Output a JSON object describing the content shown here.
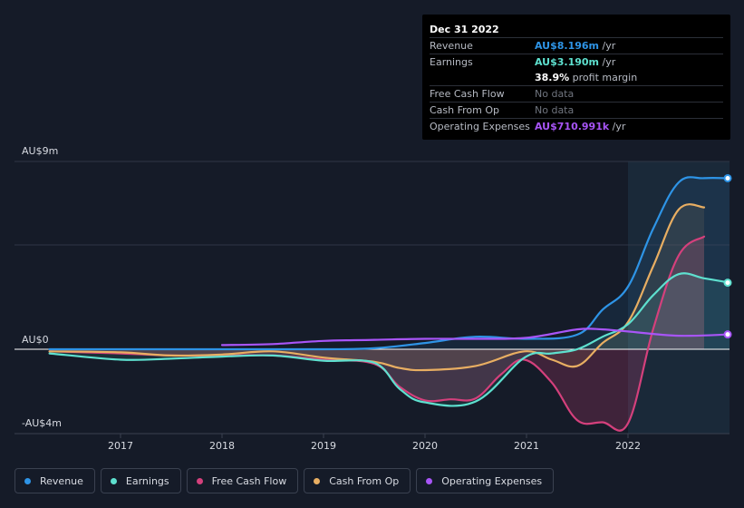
{
  "tooltip": {
    "date": "Dec 31 2022",
    "rows": {
      "revenue": {
        "label": "Revenue",
        "value": "AU$8.196m",
        "unit": " /yr",
        "color": "#2e94e6"
      },
      "earnings": {
        "label": "Earnings",
        "value": "AU$3.190m",
        "unit": " /yr",
        "color": "#5ee0cf"
      },
      "margin": {
        "value": "38.9%",
        "unit": " profit margin",
        "color": "#ffffff"
      },
      "fcf": {
        "label": "Free Cash Flow",
        "value": "No data"
      },
      "cfo": {
        "label": "Cash From Op",
        "value": "No data"
      },
      "opex": {
        "label": "Operating Expenses",
        "value": "AU$710.991k",
        "unit": " /yr",
        "color": "#a855f7"
      }
    }
  },
  "legend": {
    "revenue": "Revenue",
    "earnings": "Earnings",
    "fcf": "Free Cash Flow",
    "cfo": "Cash From Op",
    "opex": "Operating Expenses"
  },
  "chart_data": {
    "type": "line",
    "ylim": [
      -4,
      9
    ],
    "y_tick_labels": [
      {
        "value": 9,
        "label": "AU$9m"
      },
      {
        "value": 0,
        "label": "AU$0"
      },
      {
        "value": -4,
        "label": "-AU$4m"
      }
    ],
    "xlim": [
      2016.3,
      2023.0
    ],
    "x_ticks": [
      {
        "value": 2017,
        "label": "2017"
      },
      {
        "value": 2018,
        "label": "2018"
      },
      {
        "value": 2019,
        "label": "2019"
      },
      {
        "value": 2020,
        "label": "2020"
      },
      {
        "value": 2021,
        "label": "2021"
      },
      {
        "value": 2022,
        "label": "2022"
      }
    ],
    "highlight_from": 2022.0,
    "series": [
      {
        "name": "Free Cash Flow",
        "key": "fcf",
        "color": "#d4407c",
        "fill": true,
        "points": [
          [
            2016.3,
            -0.1
          ],
          [
            2017.0,
            -0.2
          ],
          [
            2017.5,
            -0.3
          ],
          [
            2018.0,
            -0.3
          ],
          [
            2018.5,
            -0.3
          ],
          [
            2019.0,
            -0.5
          ],
          [
            2019.5,
            -0.7
          ],
          [
            2019.75,
            -1.8
          ],
          [
            2020.0,
            -2.45
          ],
          [
            2020.25,
            -2.4
          ],
          [
            2020.5,
            -2.35
          ],
          [
            2020.75,
            -1.2
          ],
          [
            2020.98,
            -0.5
          ],
          [
            2021.25,
            -1.6
          ],
          [
            2021.5,
            -3.4
          ],
          [
            2021.75,
            -3.5
          ],
          [
            2022.0,
            -3.55
          ],
          [
            2022.25,
            1.0
          ],
          [
            2022.5,
            4.5
          ],
          [
            2022.75,
            5.4
          ]
        ]
      },
      {
        "name": "Cash From Op",
        "key": "cfo",
        "color": "#e8ae62",
        "fill": true,
        "points": [
          [
            2016.3,
            -0.1
          ],
          [
            2017.0,
            -0.15
          ],
          [
            2017.5,
            -0.3
          ],
          [
            2018.0,
            -0.25
          ],
          [
            2018.5,
            -0.1
          ],
          [
            2019.0,
            -0.4
          ],
          [
            2019.5,
            -0.6
          ],
          [
            2019.75,
            -0.9
          ],
          [
            2020.0,
            -1.0
          ],
          [
            2020.5,
            -0.8
          ],
          [
            2020.98,
            -0.1
          ],
          [
            2021.25,
            -0.5
          ],
          [
            2021.5,
            -0.8
          ],
          [
            2021.75,
            0.3
          ],
          [
            2022.0,
            1.3
          ],
          [
            2022.25,
            4.0
          ],
          [
            2022.5,
            6.7
          ],
          [
            2022.75,
            6.8
          ]
        ]
      },
      {
        "name": "Earnings",
        "key": "earnings",
        "color": "#5ee0cf",
        "fill": true,
        "points": [
          [
            2016.3,
            -0.2
          ],
          [
            2017.0,
            -0.5
          ],
          [
            2017.5,
            -0.45
          ],
          [
            2018.0,
            -0.35
          ],
          [
            2018.5,
            -0.3
          ],
          [
            2019.0,
            -0.55
          ],
          [
            2019.5,
            -0.65
          ],
          [
            2019.75,
            -1.9
          ],
          [
            2020.0,
            -2.55
          ],
          [
            2020.5,
            -2.5
          ],
          [
            2020.98,
            -0.4
          ],
          [
            2021.25,
            -0.2
          ],
          [
            2021.5,
            0.0
          ],
          [
            2021.75,
            0.6
          ],
          [
            2022.0,
            1.2
          ],
          [
            2022.25,
            2.6
          ],
          [
            2022.5,
            3.6
          ],
          [
            2022.75,
            3.4
          ],
          [
            2023.0,
            3.19
          ]
        ]
      },
      {
        "name": "Revenue",
        "key": "revenue",
        "color": "#2e94e6",
        "fill": true,
        "points": [
          [
            2016.3,
            0.0
          ],
          [
            2017.0,
            0.0
          ],
          [
            2018.0,
            0.0
          ],
          [
            2019.0,
            0.0
          ],
          [
            2019.5,
            0.05
          ],
          [
            2020.0,
            0.3
          ],
          [
            2020.5,
            0.6
          ],
          [
            2021.0,
            0.5
          ],
          [
            2021.5,
            0.7
          ],
          [
            2021.75,
            1.9
          ],
          [
            2022.0,
            3.0
          ],
          [
            2022.25,
            5.8
          ],
          [
            2022.5,
            8.0
          ],
          [
            2022.75,
            8.2
          ],
          [
            2023.0,
            8.196
          ]
        ]
      },
      {
        "name": "Operating Expenses",
        "key": "opex",
        "color": "#a855f7",
        "fill": false,
        "points": [
          [
            2018.0,
            0.2
          ],
          [
            2018.5,
            0.25
          ],
          [
            2019.0,
            0.4
          ],
          [
            2019.5,
            0.45
          ],
          [
            2020.0,
            0.5
          ],
          [
            2020.5,
            0.5
          ],
          [
            2021.0,
            0.55
          ],
          [
            2021.5,
            0.95
          ],
          [
            2021.75,
            0.95
          ],
          [
            2022.0,
            0.85
          ],
          [
            2022.5,
            0.65
          ],
          [
            2023.0,
            0.71
          ]
        ]
      }
    ]
  }
}
